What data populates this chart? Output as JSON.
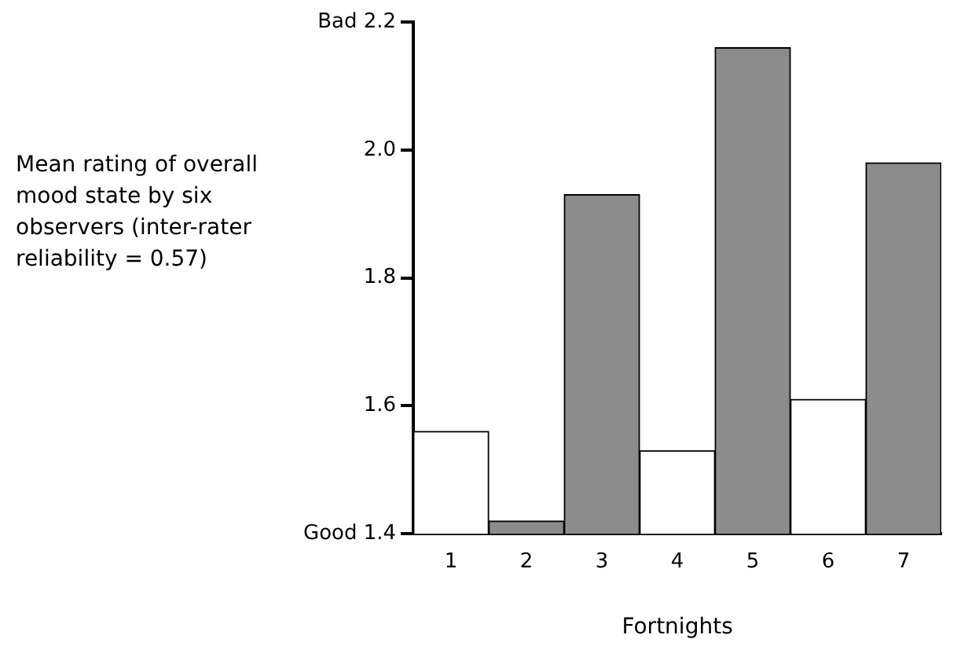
{
  "chart_data": {
    "type": "bar",
    "xlabel": "Fortnights",
    "ylabel": "Mean rating of overall mood state by six observers (inter-rater reliability = 0.57)",
    "categories": [
      "1",
      "2",
      "3",
      "4",
      "5",
      "6",
      "7"
    ],
    "values": [
      1.56,
      1.42,
      1.93,
      1.53,
      2.16,
      1.61,
      1.98
    ],
    "colors": [
      "#ffffff",
      "#8c8c8c",
      "#8c8c8c",
      "#ffffff",
      "#8c8c8c",
      "#ffffff",
      "#8c8c8c"
    ],
    "ylim": [
      1.4,
      2.2
    ],
    "yticks": [
      {
        "value": 1.4,
        "label": "Good 1.4"
      },
      1.6,
      1.8,
      {
        "value": 2.0,
        "label": "2.0"
      },
      {
        "value": 2.2,
        "label": "Bad 2.2"
      }
    ],
    "grid": false,
    "legend": false
  }
}
